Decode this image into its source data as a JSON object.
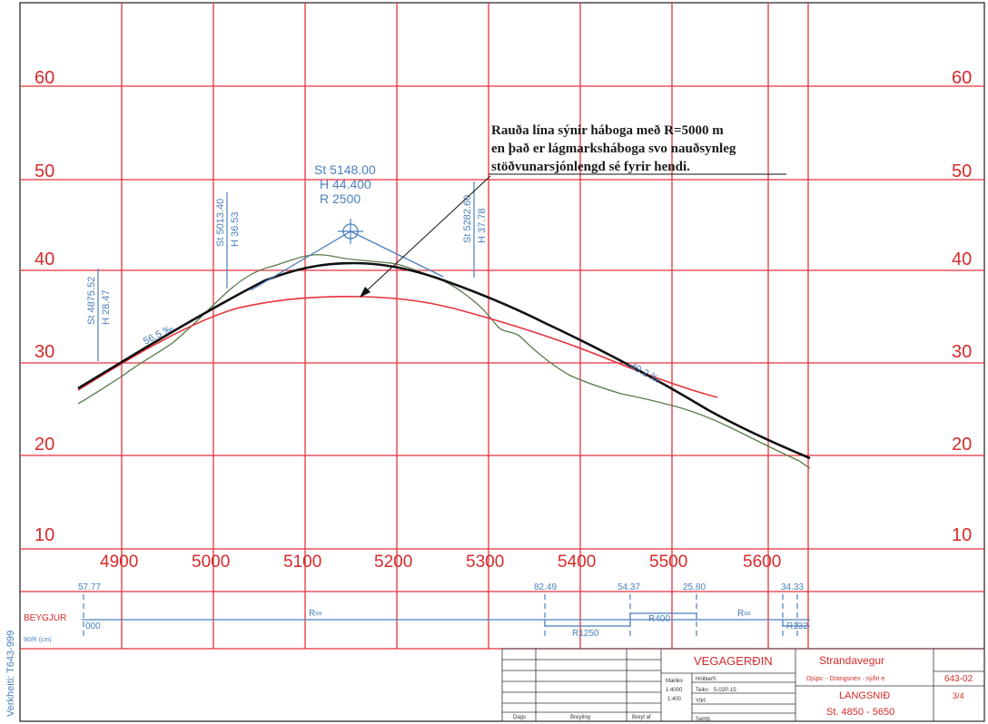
{
  "profile": {
    "elevation_labels": [
      "60",
      "50",
      "40",
      "30",
      "20",
      "10"
    ],
    "station_labels": [
      "4900",
      "5000",
      "5100",
      "5200",
      "5300",
      "5400",
      "5500",
      "5600"
    ],
    "vertical_axis_label": "Verkheiti: T643-999",
    "annotation": {
      "line1": "Rauða lína sýnir háboga með R=5000 m",
      "line2": "en það er lágmarksháboga svo nauðsynleg",
      "line3": "stöðvunarsjónlengd sé fyrir hendi."
    },
    "top_point": {
      "station": "St 5148.00",
      "height": "H 44.400",
      "radius": "R 2500"
    },
    "vertical_stations": [
      {
        "st": "St 4875.52",
        "h": "H 28.47"
      },
      {
        "st": "St 5013.40",
        "h": "H 36.53"
      },
      {
        "st": "St 5282.60",
        "h": "H 37.78"
      }
    ],
    "grades": [
      "56.5 ‰",
      "-49.2 ‰"
    ],
    "colors": {
      "grid": "#e8323c",
      "design_line": "#111111",
      "minimum_curve": "#e8323c",
      "terrain": "#5a7a4a",
      "blue": "#4a7fbf"
    }
  },
  "curves_band": {
    "title": "BEYGJUR",
    "subtitle": "90/R (cm)",
    "lengths": [
      "57.77",
      "82.49",
      "54.37",
      "25.80",
      "34.33"
    ],
    "radii": [
      "000",
      "R∞",
      "R1250",
      "R400",
      "R∞",
      "R132"
    ]
  },
  "title_block": {
    "org": "VEGAGERÐIN",
    "project": "Strandavegur",
    "subproject": "Djúpv. - Drangsnes · sýðri e",
    "drawing_no": "643-02",
    "sheet": "3/4",
    "drawing_title": "LANGSNIÐ",
    "station_range": "St. 4850 - 5650",
    "scale_label": "Mælikv",
    "scale_values": [
      "1:4000",
      "1:400"
    ],
    "coord_label": "Hnitkerfi",
    "drawing_label": "Teikn",
    "drawing_value": "5-02P-15",
    "field_a": "Yfirf.",
    "field_b": "Samþ.",
    "date_label": "Dags",
    "change_label": "Breyting",
    "initials_label": "Breyt af"
  }
}
